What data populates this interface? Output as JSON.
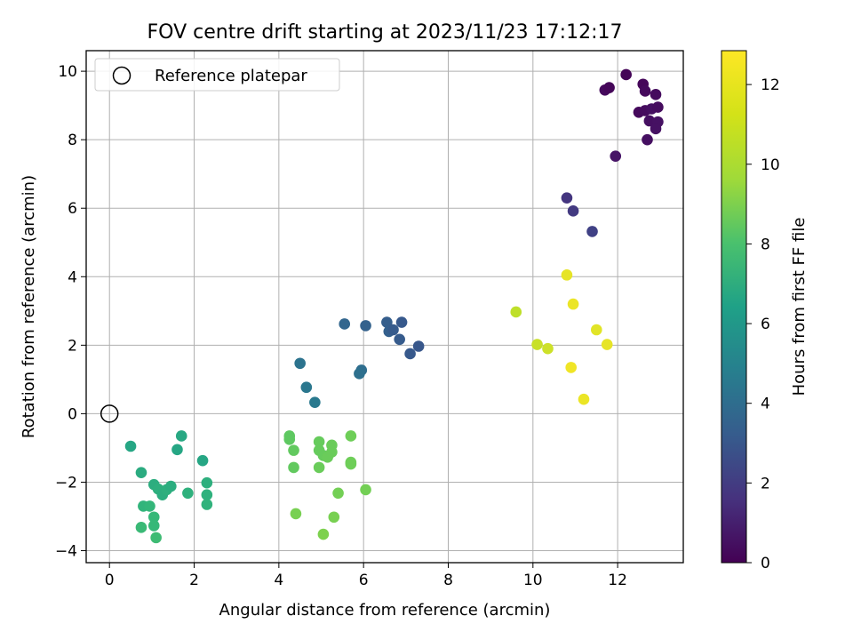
{
  "chart_data": {
    "type": "scatter",
    "title": "FOV centre drift starting at 2023/11/23 17:12:17",
    "xlabel": "Angular distance from reference (arcmin)",
    "ylabel": "Rotation from reference (arcmin)",
    "xlim": [
      -0.55,
      13.55
    ],
    "ylim": [
      -4.35,
      10.6
    ],
    "xticks": [
      0,
      2,
      4,
      6,
      8,
      10,
      12
    ],
    "yticks": [
      -4,
      -2,
      0,
      2,
      4,
      6,
      8,
      10
    ],
    "grid": true,
    "legend": {
      "position": "top-left",
      "entries": [
        "Reference platepar"
      ]
    },
    "reference_point": {
      "x": 0,
      "y": 0,
      "marker": "open-circle"
    },
    "colorbar": {
      "label": "Hours from first FF file",
      "colormap": "viridis",
      "range": [
        0,
        12.85
      ],
      "ticks": [
        0,
        2,
        4,
        6,
        8,
        10,
        12
      ]
    },
    "points": [
      {
        "x": 12.2,
        "y": 9.9,
        "c": 0.1
      },
      {
        "x": 11.7,
        "y": 9.45,
        "c": 0.3
      },
      {
        "x": 11.8,
        "y": 9.52,
        "c": 0.2
      },
      {
        "x": 12.6,
        "y": 9.62,
        "c": 0.2
      },
      {
        "x": 12.65,
        "y": 9.42,
        "c": 0.3
      },
      {
        "x": 12.9,
        "y": 9.32,
        "c": 0.4
      },
      {
        "x": 12.5,
        "y": 8.8,
        "c": 0.3
      },
      {
        "x": 12.65,
        "y": 8.85,
        "c": 0.4
      },
      {
        "x": 12.8,
        "y": 8.9,
        "c": 0.5
      },
      {
        "x": 12.95,
        "y": 8.95,
        "c": 0.4
      },
      {
        "x": 12.75,
        "y": 8.55,
        "c": 0.5
      },
      {
        "x": 12.95,
        "y": 8.52,
        "c": 0.6
      },
      {
        "x": 12.9,
        "y": 8.32,
        "c": 0.6
      },
      {
        "x": 12.7,
        "y": 8.0,
        "c": 0.5
      },
      {
        "x": 11.95,
        "y": 7.52,
        "c": 0.7
      },
      {
        "x": 10.8,
        "y": 6.3,
        "c": 2.0
      },
      {
        "x": 10.95,
        "y": 5.92,
        "c": 2.2
      },
      {
        "x": 11.4,
        "y": 5.32,
        "c": 2.5
      },
      {
        "x": 5.55,
        "y": 2.62,
        "c": 4.2
      },
      {
        "x": 6.05,
        "y": 2.57,
        "c": 4.0
      },
      {
        "x": 6.55,
        "y": 2.67,
        "c": 3.8
      },
      {
        "x": 6.6,
        "y": 2.4,
        "c": 3.9
      },
      {
        "x": 6.7,
        "y": 2.45,
        "c": 3.7
      },
      {
        "x": 6.9,
        "y": 2.67,
        "c": 3.6
      },
      {
        "x": 6.85,
        "y": 2.17,
        "c": 3.7
      },
      {
        "x": 7.3,
        "y": 1.97,
        "c": 3.5
      },
      {
        "x": 7.1,
        "y": 1.75,
        "c": 3.6
      },
      {
        "x": 4.5,
        "y": 1.47,
        "c": 4.9
      },
      {
        "x": 5.95,
        "y": 1.27,
        "c": 4.6
      },
      {
        "x": 5.9,
        "y": 1.17,
        "c": 4.7
      },
      {
        "x": 4.65,
        "y": 0.77,
        "c": 5.1
      },
      {
        "x": 4.85,
        "y": 0.33,
        "c": 5.2
      },
      {
        "x": 0.5,
        "y": -0.95,
        "c": 7.6
      },
      {
        "x": 1.7,
        "y": -0.65,
        "c": 7.7
      },
      {
        "x": 1.6,
        "y": -1.05,
        "c": 7.6
      },
      {
        "x": 2.2,
        "y": -1.37,
        "c": 7.6
      },
      {
        "x": 0.75,
        "y": -1.72,
        "c": 7.9
      },
      {
        "x": 1.05,
        "y": -2.07,
        "c": 8.0
      },
      {
        "x": 1.15,
        "y": -2.2,
        "c": 8.1
      },
      {
        "x": 1.25,
        "y": -2.37,
        "c": 8.0
      },
      {
        "x": 1.35,
        "y": -2.22,
        "c": 8.1
      },
      {
        "x": 1.45,
        "y": -2.12,
        "c": 8.0
      },
      {
        "x": 1.85,
        "y": -2.32,
        "c": 8.2
      },
      {
        "x": 2.3,
        "y": -2.02,
        "c": 8.1
      },
      {
        "x": 2.3,
        "y": -2.37,
        "c": 8.2
      },
      {
        "x": 2.3,
        "y": -2.65,
        "c": 8.3
      },
      {
        "x": 0.8,
        "y": -2.7,
        "c": 8.4
      },
      {
        "x": 0.95,
        "y": -2.7,
        "c": 8.5
      },
      {
        "x": 1.05,
        "y": -3.02,
        "c": 8.6
      },
      {
        "x": 1.05,
        "y": -3.27,
        "c": 8.6
      },
      {
        "x": 0.75,
        "y": -3.32,
        "c": 8.7
      },
      {
        "x": 1.1,
        "y": -3.62,
        "c": 8.8
      },
      {
        "x": 4.25,
        "y": -0.65,
        "c": 9.6
      },
      {
        "x": 4.25,
        "y": -0.75,
        "c": 9.6
      },
      {
        "x": 4.35,
        "y": -1.07,
        "c": 9.7
      },
      {
        "x": 4.35,
        "y": -1.57,
        "c": 9.7
      },
      {
        "x": 4.95,
        "y": -0.82,
        "c": 9.8
      },
      {
        "x": 4.95,
        "y": -1.07,
        "c": 9.8
      },
      {
        "x": 5.05,
        "y": -1.22,
        "c": 9.8
      },
      {
        "x": 5.15,
        "y": -1.27,
        "c": 9.9
      },
      {
        "x": 5.25,
        "y": -0.92,
        "c": 9.9
      },
      {
        "x": 5.25,
        "y": -1.12,
        "c": 9.9
      },
      {
        "x": 4.95,
        "y": -1.57,
        "c": 9.9
      },
      {
        "x": 5.7,
        "y": -0.65,
        "c": 10.0
      },
      {
        "x": 5.7,
        "y": -1.42,
        "c": 10.0
      },
      {
        "x": 5.7,
        "y": -1.47,
        "c": 10.0
      },
      {
        "x": 6.05,
        "y": -2.22,
        "c": 10.1
      },
      {
        "x": 5.4,
        "y": -2.32,
        "c": 10.1
      },
      {
        "x": 4.4,
        "y": -2.92,
        "c": 10.2
      },
      {
        "x": 5.3,
        "y": -3.02,
        "c": 10.2
      },
      {
        "x": 5.05,
        "y": -3.52,
        "c": 10.3
      },
      {
        "x": 9.6,
        "y": 2.97,
        "c": 11.6
      },
      {
        "x": 10.8,
        "y": 4.05,
        "c": 12.4
      },
      {
        "x": 10.95,
        "y": 3.2,
        "c": 12.5
      },
      {
        "x": 10.1,
        "y": 2.02,
        "c": 11.8
      },
      {
        "x": 10.35,
        "y": 1.9,
        "c": 11.9
      },
      {
        "x": 11.5,
        "y": 2.45,
        "c": 12.3
      },
      {
        "x": 11.75,
        "y": 2.02,
        "c": 12.4
      },
      {
        "x": 10.9,
        "y": 1.35,
        "c": 12.6
      },
      {
        "x": 11.2,
        "y": 0.42,
        "c": 12.5
      }
    ]
  }
}
